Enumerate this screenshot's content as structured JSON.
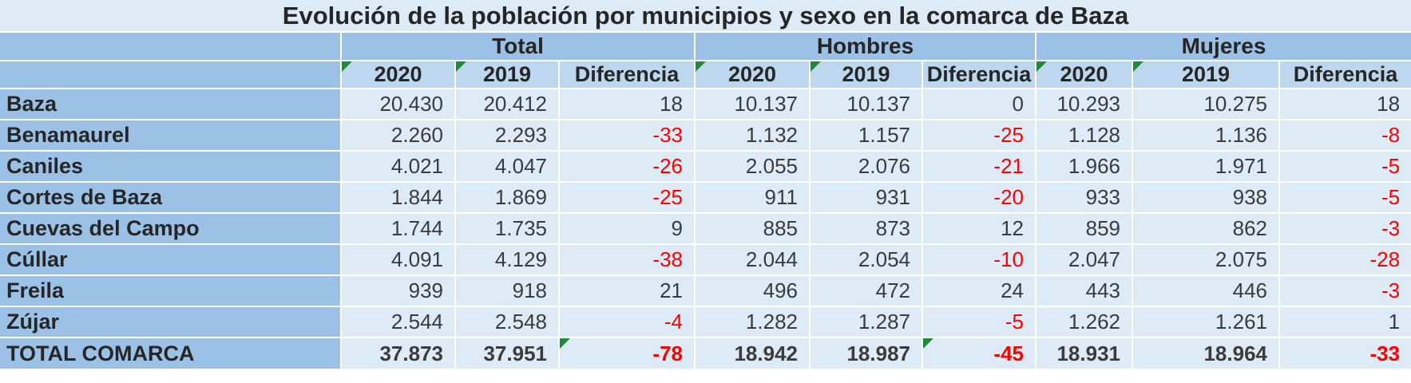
{
  "title": "Evolución de la población por municipios y sexo en la comarca de Baza",
  "columns": {
    "groups": [
      {
        "label": "Total"
      },
      {
        "label": "Hombres"
      },
      {
        "label": "Mujeres"
      }
    ],
    "sub": [
      {
        "label": "2020",
        "marker": true
      },
      {
        "label": "2019",
        "marker": true
      },
      {
        "label": "Diferencia",
        "marker": false
      }
    ]
  },
  "rows": [
    {
      "label": "Baza",
      "cells": [
        "20.430",
        "20.412",
        "18",
        "10.137",
        "10.137",
        "0",
        "10.293",
        "10.275",
        "18"
      ]
    },
    {
      "label": "Benamaurel",
      "cells": [
        "2.260",
        "2.293",
        "-33",
        "1.132",
        "1.157",
        "-25",
        "1.128",
        "1.136",
        "-8"
      ]
    },
    {
      "label": "Caniles",
      "cells": [
        "4.021",
        "4.047",
        "-26",
        "2.055",
        "2.076",
        "-21",
        "1.966",
        "1.971",
        "-5"
      ]
    },
    {
      "label": "Cortes de Baza",
      "cells": [
        "1.844",
        "1.869",
        "-25",
        "911",
        "931",
        "-20",
        "933",
        "938",
        "-5"
      ]
    },
    {
      "label": "Cuevas del Campo",
      "cells": [
        "1.744",
        "1.735",
        "9",
        "885",
        "873",
        "12",
        "859",
        "862",
        "-3"
      ]
    },
    {
      "label": "Cúllar",
      "cells": [
        "4.091",
        "4.129",
        "-38",
        "2.044",
        "2.054",
        "-10",
        "2.047",
        "2.075",
        "-28"
      ]
    },
    {
      "label": "Freila",
      "cells": [
        "939",
        "918",
        "21",
        "496",
        "472",
        "24",
        "443",
        "446",
        "-3"
      ]
    },
    {
      "label": "Zújar",
      "cells": [
        "2.544",
        "2.548",
        "-4",
        "1.282",
        "1.287",
        "-5",
        "1.262",
        "1.261",
        "1"
      ]
    }
  ],
  "total_row": {
    "label": "TOTAL COMARCA",
    "cells": [
      "37.873",
      "37.951",
      "-78",
      "18.942",
      "18.987",
      "-45",
      "18.931",
      "18.964",
      "-33"
    ],
    "markers": [
      false,
      false,
      true,
      false,
      false,
      true,
      false,
      false,
      false
    ]
  },
  "icons": {
    "error_indicator": "green corner triangle (spreadsheet error/comment marker)"
  },
  "colors": {
    "band_dark": "#9BC2E6",
    "band_mid": "#BDD7EE",
    "band_light": "#DDEBF7",
    "negative": "#FF0000",
    "marker_green": "#1F8B3A",
    "grid": "#FFFFFF",
    "text_dark": "#262626",
    "text_number": "#3B3B3B"
  },
  "chart_data": {
    "type": "table",
    "title": "Evolución de la población por municipios y sexo en la comarca de Baza",
    "column_groups": [
      "Total",
      "Hombres",
      "Mujeres"
    ],
    "columns": [
      "Total 2020",
      "Total 2019",
      "Total Diferencia",
      "Hombres 2020",
      "Hombres 2019",
      "Hombres Diferencia",
      "Mujeres 2020",
      "Mujeres 2019",
      "Mujeres Diferencia"
    ],
    "rows": [
      {
        "municipio": "Baza",
        "values": [
          20430,
          20412,
          18,
          10137,
          10137,
          0,
          10293,
          10275,
          18
        ]
      },
      {
        "municipio": "Benamaurel",
        "values": [
          2260,
          2293,
          -33,
          1132,
          1157,
          -25,
          1128,
          1136,
          -8
        ]
      },
      {
        "municipio": "Caniles",
        "values": [
          4021,
          4047,
          -26,
          2055,
          2076,
          -21,
          1966,
          1971,
          -5
        ]
      },
      {
        "municipio": "Cortes de Baza",
        "values": [
          1844,
          1869,
          -25,
          911,
          931,
          -20,
          933,
          938,
          -5
        ]
      },
      {
        "municipio": "Cuevas del Campo",
        "values": [
          1744,
          1735,
          9,
          885,
          873,
          12,
          859,
          862,
          -3
        ]
      },
      {
        "municipio": "Cúllar",
        "values": [
          4091,
          4129,
          -38,
          2044,
          2054,
          -10,
          2047,
          2075,
          -28
        ]
      },
      {
        "municipio": "Freila",
        "values": [
          939,
          918,
          21,
          496,
          472,
          24,
          443,
          446,
          -3
        ]
      },
      {
        "municipio": "Zújar",
        "values": [
          2544,
          2548,
          -4,
          1282,
          1287,
          -5,
          1262,
          1261,
          1
        ]
      }
    ],
    "total": {
      "municipio": "TOTAL COMARCA",
      "values": [
        37873,
        37951,
        -78,
        18942,
        18987,
        -45,
        18931,
        18964,
        -33
      ]
    },
    "notes": "Negative Diferencia values rendered in red; green corner markers on 2020/2019 header cells and on total-row Diferencia cells (Total, Hombres)."
  }
}
